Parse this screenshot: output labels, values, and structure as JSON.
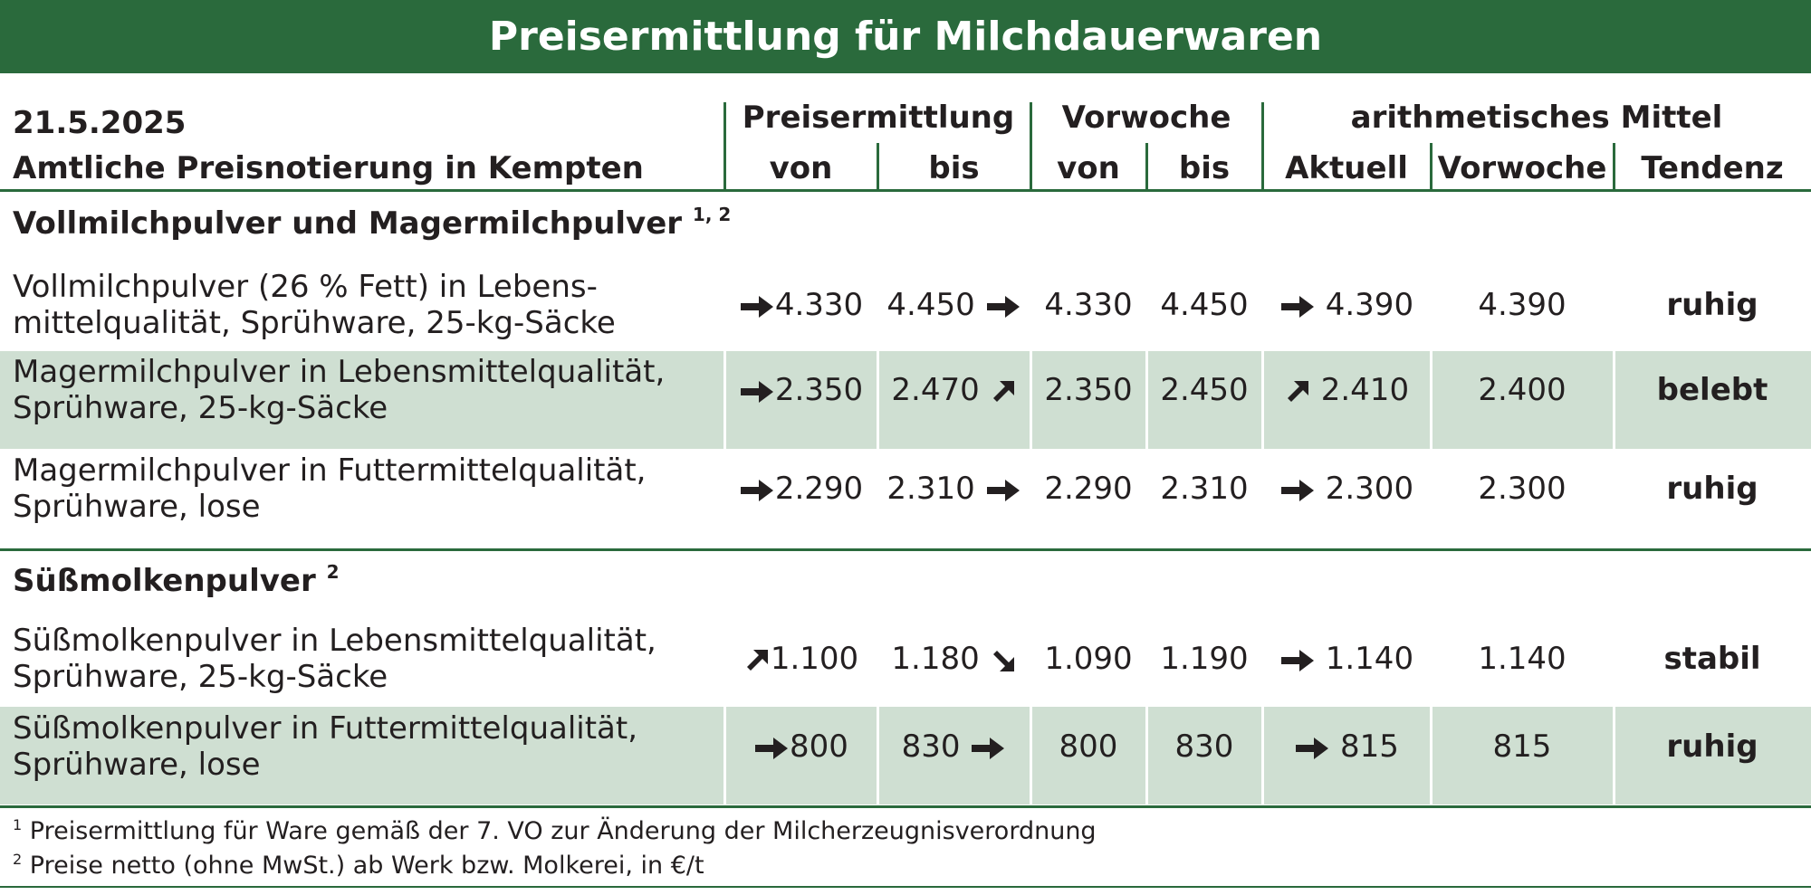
{
  "title": "Preisermittlung für Milchdauerwaren",
  "header": {
    "date": "21.5.2025",
    "subtitle": "Amtliche Preisnotierung in Kempten",
    "group_preis": "Preisermittlung",
    "group_vorwoche": "Vorwoche",
    "group_mittel": "arithmetisches Mittel",
    "col_von": "von",
    "col_bis": "bis",
    "col_vw_von": "von",
    "col_vw_bis": "bis",
    "col_aktuell": "Aktuell",
    "col_vorwoche": "Vorwoche",
    "col_tendenz": "Tendenz"
  },
  "sections": [
    {
      "title": "Vollmilchpulver und Magermilchpulver",
      "note": "1, 2",
      "rows": [
        {
          "label1": "Vollmilchpulver (26 % Fett) in Lebens-",
          "label2": "mittelqualität, Sprühware, 25-kg-Säcke",
          "von_arrow": "right-arrow",
          "von": "4.330",
          "bis": "4.450",
          "bis_arrow": "right-arrow",
          "vw_von": "4.330",
          "vw_bis": "4.450",
          "akt_arrow": "right-arrow",
          "aktuell": "4.390",
          "vorwoche": "4.390",
          "tendenz": "ruhig",
          "shaded": false
        },
        {
          "label1": "Magermilchpulver in Lebensmittelqualität,",
          "label2": "Sprühware, 25-kg-Säcke",
          "von_arrow": "right-arrow",
          "von": "2.350",
          "bis": "2.470",
          "bis_arrow": "up-right-arrow",
          "vw_von": "2.350",
          "vw_bis": "2.450",
          "akt_arrow": "up-right-arrow",
          "aktuell": "2.410",
          "vorwoche": "2.400",
          "tendenz": "belebt",
          "shaded": true
        },
        {
          "label1": "Magermilchpulver in Futtermittelqualität,",
          "label2": "Sprühware, lose",
          "von_arrow": "right-arrow",
          "von": "2.290",
          "bis": "2.310",
          "bis_arrow": "right-arrow",
          "vw_von": "2.290",
          "vw_bis": "2.310",
          "akt_arrow": "right-arrow",
          "aktuell": "2.300",
          "vorwoche": "2.300",
          "tendenz": "ruhig",
          "shaded": false
        }
      ]
    },
    {
      "title": "Süßmolkenpulver",
      "note": "2",
      "rows": [
        {
          "label1": "Süßmolkenpulver in Lebensmittelqualität,",
          "label2": "Sprühware, 25-kg-Säcke",
          "von_arrow": "up-right-arrow",
          "von": "1.100",
          "bis": "1.180",
          "bis_arrow": "down-right-arrow",
          "vw_von": "1.090",
          "vw_bis": "1.190",
          "akt_arrow": "right-arrow",
          "aktuell": "1.140",
          "vorwoche": "1.140",
          "tendenz": "stabil",
          "shaded": false
        },
        {
          "label1": "Süßmolkenpulver in Futtermittelqualität,",
          "label2": "Sprühware, lose",
          "von_arrow": "right-arrow",
          "von": "800",
          "bis": "830",
          "bis_arrow": "right-arrow",
          "vw_von": "800",
          "vw_bis": "830",
          "akt_arrow": "right-arrow",
          "aktuell": "815",
          "vorwoche": "815",
          "tendenz": "ruhig",
          "shaded": true
        }
      ]
    }
  ],
  "footnotes": [
    {
      "mark": "1",
      "text": "Preisermittlung für Ware gemäß der 7. VO zur Änderung der Milcherzeugnisverordnung"
    },
    {
      "mark": "2",
      "text": "Preise netto (ohne MwSt.) ab Werk bzw. Molkerei, in €/t"
    }
  ],
  "colors": {
    "green": "#2a6a3c",
    "shade": "#cfdfd2",
    "text": "#231f20"
  }
}
